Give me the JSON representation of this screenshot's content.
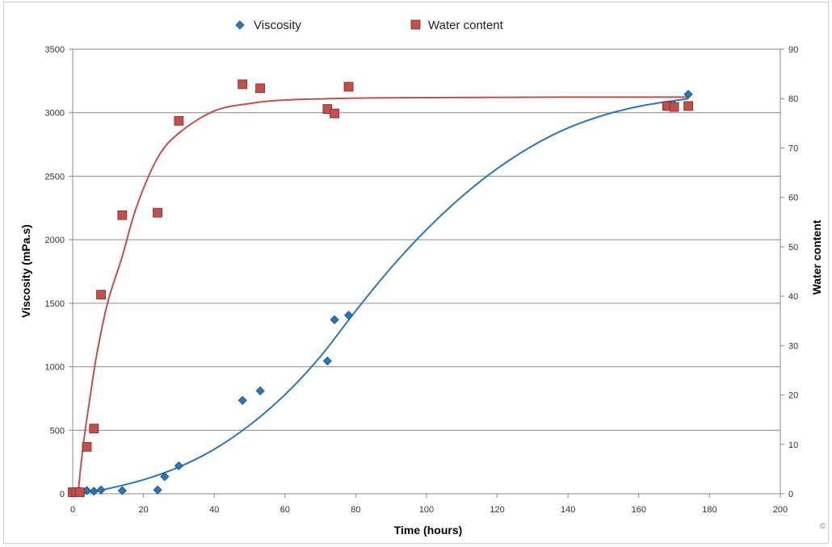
{
  "chart_data": {
    "type": "scatter",
    "xlabel": "Time (hours)",
    "ylabel": "Viscosity (mPa.s)",
    "y2label": "Water content",
    "xlim": [
      0,
      200
    ],
    "ylim": [
      0,
      3500
    ],
    "y2lim": [
      0,
      90
    ],
    "x_ticks": [
      "0",
      "20",
      "40",
      "60",
      "80",
      "100",
      "120",
      "140",
      "160",
      "180",
      "200"
    ],
    "y_ticks": [
      "0",
      "500",
      "1000",
      "1500",
      "2000",
      "2500",
      "3000",
      "3500"
    ],
    "y2_ticks": [
      "0",
      "10",
      "20",
      "30",
      "40",
      "50",
      "60",
      "70",
      "80",
      "90"
    ],
    "grid": "horizontal",
    "legend_position": "top",
    "series": [
      {
        "name": "Viscosity",
        "axis": "left",
        "marker": "diamond",
        "color": "#2e75b6",
        "points": [
          [
            0,
            15
          ],
          [
            2,
            20
          ],
          [
            4,
            25
          ],
          [
            6,
            20
          ],
          [
            8,
            30
          ],
          [
            14,
            25
          ],
          [
            24,
            30
          ],
          [
            26,
            135
          ],
          [
            30,
            220
          ],
          [
            48,
            735
          ],
          [
            53,
            810
          ],
          [
            72,
            1045
          ],
          [
            74,
            1370
          ],
          [
            78,
            1405
          ],
          [
            168,
            3060
          ],
          [
            170,
            3060
          ],
          [
            174,
            3145
          ]
        ],
        "trend": [
          [
            0,
            0
          ],
          [
            5,
            15
          ],
          [
            10,
            40
          ],
          [
            20,
            110
          ],
          [
            30,
            210
          ],
          [
            40,
            350
          ],
          [
            50,
            540
          ],
          [
            60,
            780
          ],
          [
            70,
            1080
          ],
          [
            80,
            1440
          ],
          [
            90,
            1780
          ],
          [
            100,
            2080
          ],
          [
            110,
            2340
          ],
          [
            120,
            2560
          ],
          [
            130,
            2740
          ],
          [
            140,
            2880
          ],
          [
            150,
            2980
          ],
          [
            160,
            3050
          ],
          [
            170,
            3095
          ],
          [
            174,
            3110
          ]
        ]
      },
      {
        "name": "Water content",
        "axis": "right",
        "marker": "square",
        "color": "#c0504d",
        "points": [
          [
            0,
            0.3
          ],
          [
            1,
            0.3
          ],
          [
            2,
            0.3
          ],
          [
            4,
            9.5
          ],
          [
            6,
            13.2
          ],
          [
            8,
            40.3
          ],
          [
            14,
            56.4
          ],
          [
            24,
            56.9
          ],
          [
            30,
            75.5
          ],
          [
            48,
            82.9
          ],
          [
            53,
            82.1
          ],
          [
            72,
            77.9
          ],
          [
            74,
            77.0
          ],
          [
            78,
            82.4
          ],
          [
            168,
            78.5
          ],
          [
            170,
            78.3
          ],
          [
            174,
            78.5
          ]
        ],
        "trend": [
          [
            1.5,
            0
          ],
          [
            3,
            10
          ],
          [
            5,
            20
          ],
          [
            7,
            29
          ],
          [
            10,
            39
          ],
          [
            14,
            48
          ],
          [
            18,
            58
          ],
          [
            24,
            68
          ],
          [
            30,
            73
          ],
          [
            40,
            77.5
          ],
          [
            50,
            79
          ],
          [
            60,
            79.7
          ],
          [
            80,
            80.1
          ],
          [
            100,
            80.2
          ],
          [
            140,
            80.3
          ],
          [
            174,
            80.3
          ]
        ]
      }
    ]
  },
  "corner_mark": "©"
}
